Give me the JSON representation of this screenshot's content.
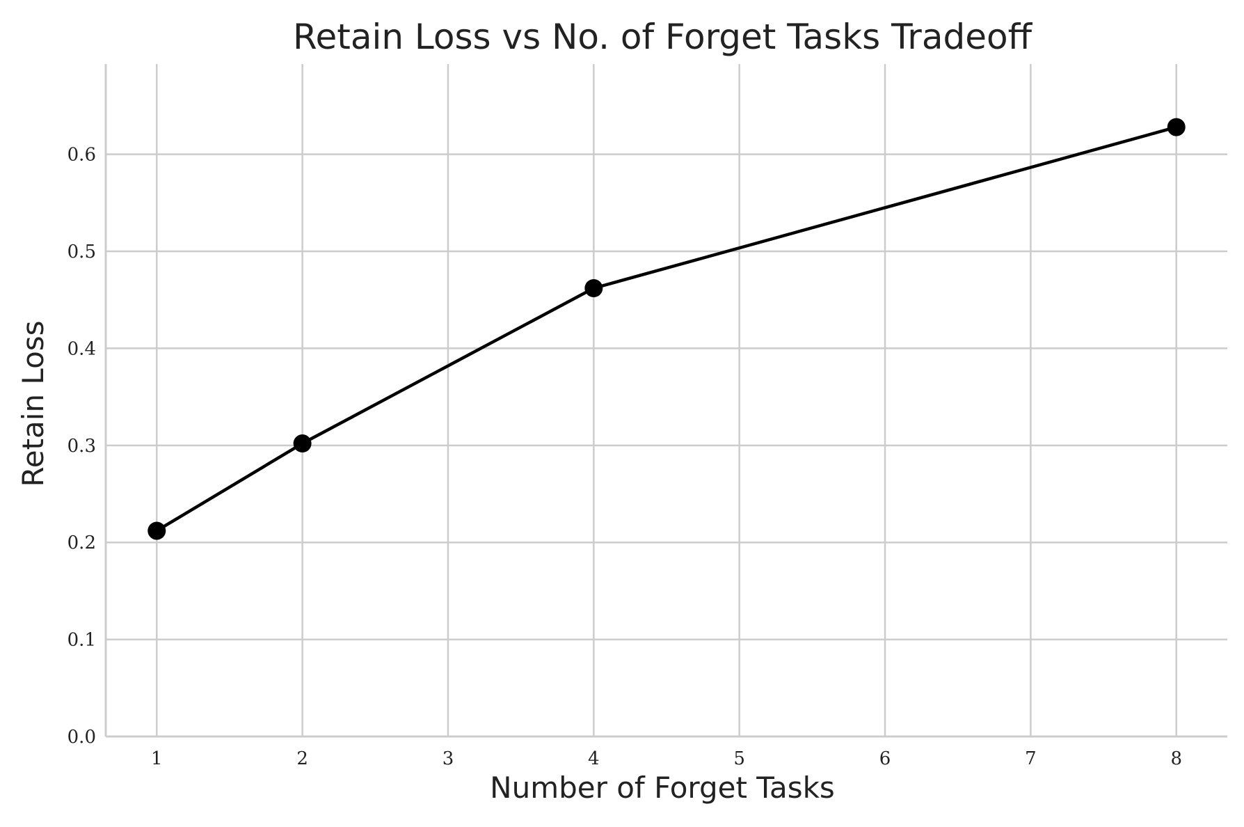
{
  "chart_data": {
    "type": "line",
    "title": "Retain Loss vs No. of Forget Tasks Tradeoff",
    "xlabel": "Number of Forget Tasks",
    "ylabel": "Retain Loss",
    "xlim": [
      0.65,
      8.35
    ],
    "ylim": [
      0.0,
      0.693
    ],
    "x_ticks": [
      1,
      2,
      3,
      4,
      5,
      6,
      7,
      8
    ],
    "y_ticks": [
      0.0,
      0.1,
      0.2,
      0.3,
      0.4,
      0.5,
      0.6
    ],
    "y_tick_labels": [
      "0.0",
      "0.1",
      "0.2",
      "0.3",
      "0.4",
      "0.5",
      "0.6"
    ],
    "grid": true,
    "series": [
      {
        "x": [
          1,
          2,
          4,
          8
        ],
        "values": [
          0.212,
          0.302,
          0.462,
          0.628
        ],
        "color": "#000000",
        "marker": "circle"
      }
    ]
  }
}
